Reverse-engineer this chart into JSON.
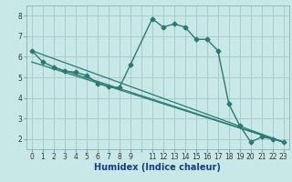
{
  "title": "",
  "xlabel": "Humidex (Indice chaleur)",
  "bg_color": "#c8e8e8",
  "grid_color": "#a8cccc",
  "line_color": "#2a7a72",
  "xlim": [
    -0.5,
    23.5
  ],
  "ylim": [
    1.5,
    8.5
  ],
  "yticks": [
    2,
    3,
    4,
    5,
    6,
    7,
    8
  ],
  "curve_x": [
    0,
    1,
    2,
    3,
    4,
    5,
    6,
    7,
    8,
    9,
    11,
    12,
    13,
    14,
    15,
    16,
    17,
    18,
    19,
    20,
    21,
    22,
    23
  ],
  "curve_y": [
    6.3,
    5.75,
    5.5,
    5.3,
    5.25,
    5.1,
    4.7,
    4.55,
    4.5,
    5.6,
    7.85,
    7.45,
    7.6,
    7.45,
    6.85,
    6.85,
    6.3,
    3.7,
    2.65,
    1.85,
    2.1,
    2.0,
    1.85
  ],
  "line1_x": [
    0,
    23
  ],
  "line1_y": [
    6.3,
    1.85
  ],
  "line2_x": [
    0,
    23
  ],
  "line2_y": [
    5.75,
    1.85
  ],
  "line3_x": [
    2,
    23
  ],
  "line3_y": [
    5.5,
    1.85
  ],
  "xlabel_color": "#1a3a8a",
  "xlabel_fontsize": 7,
  "tick_fontsize": 5.5
}
